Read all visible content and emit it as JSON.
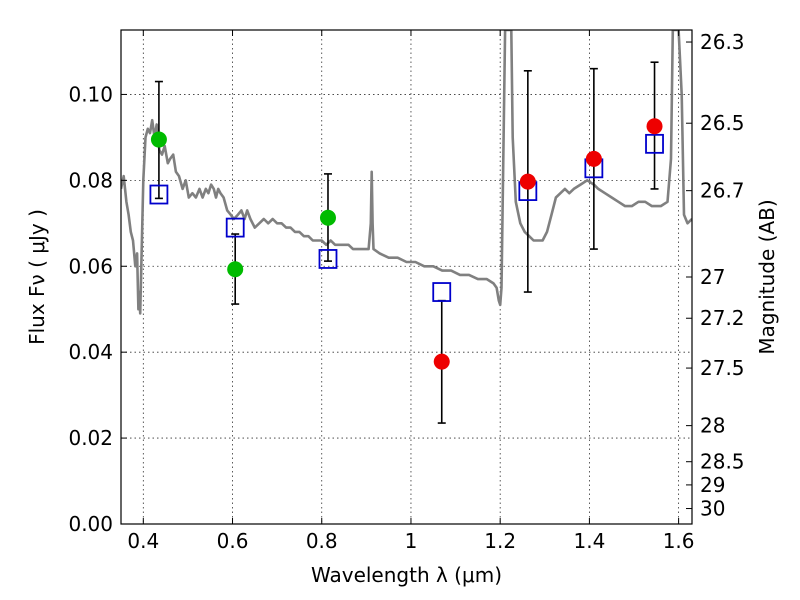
{
  "chart_data": {
    "type": "scatter",
    "xlabel": "Wavelength  λ (μm)",
    "ylabel": "Flux  Fν  ( μJy )",
    "ylabel_right": "Magnitude (AB)",
    "xlim": [
      0.35,
      1.63
    ],
    "ylim": [
      0.0,
      0.115
    ],
    "grid": true,
    "x_ticks": [
      0.4,
      0.6,
      0.8,
      1.0,
      1.2,
      1.4,
      1.6
    ],
    "x_tick_labels": [
      "0.4",
      "0.6",
      "0.8",
      "1",
      "1.2",
      "1.4",
      "1.6"
    ],
    "y_ticks": [
      0.0,
      0.02,
      0.04,
      0.06,
      0.08,
      0.1
    ],
    "y_tick_labels": [
      "0.00",
      "0.02",
      "0.04",
      "0.06",
      "0.08",
      "0.10"
    ],
    "mag_ticks": [
      {
        "flux": 0.1122,
        "label": "26.3"
      },
      {
        "flux": 0.0933,
        "label": "26.5"
      },
      {
        "flux": 0.0776,
        "label": "26.7"
      },
      {
        "flux": 0.0575,
        "label": "27"
      },
      {
        "flux": 0.0479,
        "label": "27.2"
      },
      {
        "flux": 0.0363,
        "label": "27.5"
      },
      {
        "flux": 0.0229,
        "label": "28"
      },
      {
        "flux": 0.0145,
        "label": "28.5"
      },
      {
        "flux": 0.0091,
        "label": "29"
      },
      {
        "flux": 0.0036,
        "label": "30"
      }
    ],
    "series": [
      {
        "color": "#00bb00",
        "points": [
          {
            "x": 0.435,
            "y": 0.0895,
            "yerr_low": 0.0758,
            "yerr_high": 0.103
          },
          {
            "x": 0.606,
            "y": 0.0593,
            "yerr_low": 0.0512,
            "yerr_high": 0.0675
          },
          {
            "x": 0.814,
            "y": 0.0713,
            "yerr_low": 0.0612,
            "yerr_high": 0.0815
          }
        ]
      },
      {
        "color": "#ee0000",
        "points": [
          {
            "x": 1.069,
            "y": 0.0378,
            "yerr_low": 0.0235,
            "yerr_high": 0.052
          },
          {
            "x": 1.262,
            "y": 0.0797,
            "yerr_low": 0.054,
            "yerr_high": 0.1055
          },
          {
            "x": 1.41,
            "y": 0.085,
            "yerr_low": 0.064,
            "yerr_high": 0.106
          },
          {
            "x": 1.546,
            "y": 0.0926,
            "yerr_low": 0.078,
            "yerr_high": 0.1075
          }
        ]
      }
    ],
    "model_photometry": {
      "color": "#0000cc",
      "points": [
        {
          "x": 0.435,
          "y": 0.0767
        },
        {
          "x": 0.606,
          "y": 0.069
        },
        {
          "x": 0.814,
          "y": 0.0617
        },
        {
          "x": 1.069,
          "y": 0.054
        },
        {
          "x": 1.262,
          "y": 0.0775
        },
        {
          "x": 1.41,
          "y": 0.0828
        },
        {
          "x": 1.546,
          "y": 0.0885
        }
      ]
    },
    "sed": {
      "color": "#808080",
      "points": [
        [
          0.35,
          0.078
        ],
        [
          0.356,
          0.081
        ],
        [
          0.362,
          0.075
        ],
        [
          0.367,
          0.072
        ],
        [
          0.372,
          0.068
        ],
        [
          0.377,
          0.066
        ],
        [
          0.382,
          0.06
        ],
        [
          0.386,
          0.063
        ],
        [
          0.389,
          0.05
        ],
        [
          0.391,
          0.054
        ],
        [
          0.393,
          0.049
        ],
        [
          0.396,
          0.062
        ],
        [
          0.4,
          0.08
        ],
        [
          0.405,
          0.09
        ],
        [
          0.41,
          0.092
        ],
        [
          0.415,
          0.091
        ],
        [
          0.42,
          0.094
        ],
        [
          0.425,
          0.09
        ],
        [
          0.43,
          0.093
        ],
        [
          0.436,
          0.087
        ],
        [
          0.442,
          0.086
        ],
        [
          0.448,
          0.088
        ],
        [
          0.455,
          0.084
        ],
        [
          0.46,
          0.085
        ],
        [
          0.467,
          0.086
        ],
        [
          0.473,
          0.082
        ],
        [
          0.48,
          0.081
        ],
        [
          0.488,
          0.078
        ],
        [
          0.495,
          0.08
        ],
        [
          0.502,
          0.076
        ],
        [
          0.51,
          0.077
        ],
        [
          0.518,
          0.076
        ],
        [
          0.526,
          0.078
        ],
        [
          0.533,
          0.076
        ],
        [
          0.54,
          0.078
        ],
        [
          0.546,
          0.077
        ],
        [
          0.552,
          0.079
        ],
        [
          0.558,
          0.078
        ],
        [
          0.563,
          0.076
        ],
        [
          0.568,
          0.078
        ],
        [
          0.573,
          0.077
        ],
        [
          0.58,
          0.076
        ],
        [
          0.588,
          0.073
        ],
        [
          0.596,
          0.072
        ],
        [
          0.603,
          0.071
        ],
        [
          0.612,
          0.072
        ],
        [
          0.62,
          0.073
        ],
        [
          0.627,
          0.071
        ],
        [
          0.633,
          0.073
        ],
        [
          0.64,
          0.071
        ],
        [
          0.65,
          0.069
        ],
        [
          0.66,
          0.07
        ],
        [
          0.67,
          0.071
        ],
        [
          0.68,
          0.07
        ],
        [
          0.69,
          0.071
        ],
        [
          0.7,
          0.07
        ],
        [
          0.71,
          0.07
        ],
        [
          0.72,
          0.069
        ],
        [
          0.73,
          0.069
        ],
        [
          0.74,
          0.068
        ],
        [
          0.75,
          0.068
        ],
        [
          0.76,
          0.067
        ],
        [
          0.77,
          0.067
        ],
        [
          0.78,
          0.066
        ],
        [
          0.79,
          0.066
        ],
        [
          0.8,
          0.066
        ],
        [
          0.81,
          0.065
        ],
        [
          0.82,
          0.066
        ],
        [
          0.83,
          0.065
        ],
        [
          0.84,
          0.065
        ],
        [
          0.85,
          0.065
        ],
        [
          0.86,
          0.065
        ],
        [
          0.87,
          0.064
        ],
        [
          0.88,
          0.064
        ],
        [
          0.89,
          0.064
        ],
        [
          0.9,
          0.064
        ],
        [
          0.905,
          0.064
        ],
        [
          0.91,
          0.07
        ],
        [
          0.912,
          0.082
        ],
        [
          0.914,
          0.07
        ],
        [
          0.916,
          0.064
        ],
        [
          0.93,
          0.063
        ],
        [
          0.95,
          0.062
        ],
        [
          0.97,
          0.062
        ],
        [
          0.99,
          0.061
        ],
        [
          1.01,
          0.061
        ],
        [
          1.03,
          0.06
        ],
        [
          1.05,
          0.06
        ],
        [
          1.07,
          0.059
        ],
        [
          1.09,
          0.059
        ],
        [
          1.11,
          0.058
        ],
        [
          1.13,
          0.058
        ],
        [
          1.15,
          0.057
        ],
        [
          1.17,
          0.057
        ],
        [
          1.185,
          0.056
        ],
        [
          1.192,
          0.055
        ],
        [
          1.197,
          0.052
        ],
        [
          1.2,
          0.051
        ],
        [
          1.203,
          0.055
        ],
        [
          1.207,
          0.085
        ],
        [
          1.211,
          0.115
        ],
        [
          1.225,
          0.115
        ],
        [
          1.228,
          0.09
        ],
        [
          1.235,
          0.075
        ],
        [
          1.245,
          0.07
        ],
        [
          1.255,
          0.068
        ],
        [
          1.265,
          0.067
        ],
        [
          1.275,
          0.066
        ],
        [
          1.285,
          0.066
        ],
        [
          1.295,
          0.066
        ],
        [
          1.305,
          0.068
        ],
        [
          1.315,
          0.072
        ],
        [
          1.325,
          0.076
        ],
        [
          1.335,
          0.077
        ],
        [
          1.345,
          0.078
        ],
        [
          1.355,
          0.077
        ],
        [
          1.365,
          0.078
        ],
        [
          1.38,
          0.079
        ],
        [
          1.395,
          0.08
        ],
        [
          1.41,
          0.079
        ],
        [
          1.42,
          0.078
        ],
        [
          1.435,
          0.077
        ],
        [
          1.45,
          0.076
        ],
        [
          1.465,
          0.075
        ],
        [
          1.48,
          0.074
        ],
        [
          1.495,
          0.074
        ],
        [
          1.51,
          0.075
        ],
        [
          1.525,
          0.075
        ],
        [
          1.54,
          0.074
        ],
        [
          1.56,
          0.074
        ],
        [
          1.575,
          0.075
        ],
        [
          1.583,
          0.085
        ],
        [
          1.587,
          0.115
        ],
        [
          1.6,
          0.115
        ],
        [
          1.607,
          0.1
        ],
        [
          1.612,
          0.072
        ],
        [
          1.62,
          0.07
        ],
        [
          1.63,
          0.071
        ]
      ]
    }
  }
}
